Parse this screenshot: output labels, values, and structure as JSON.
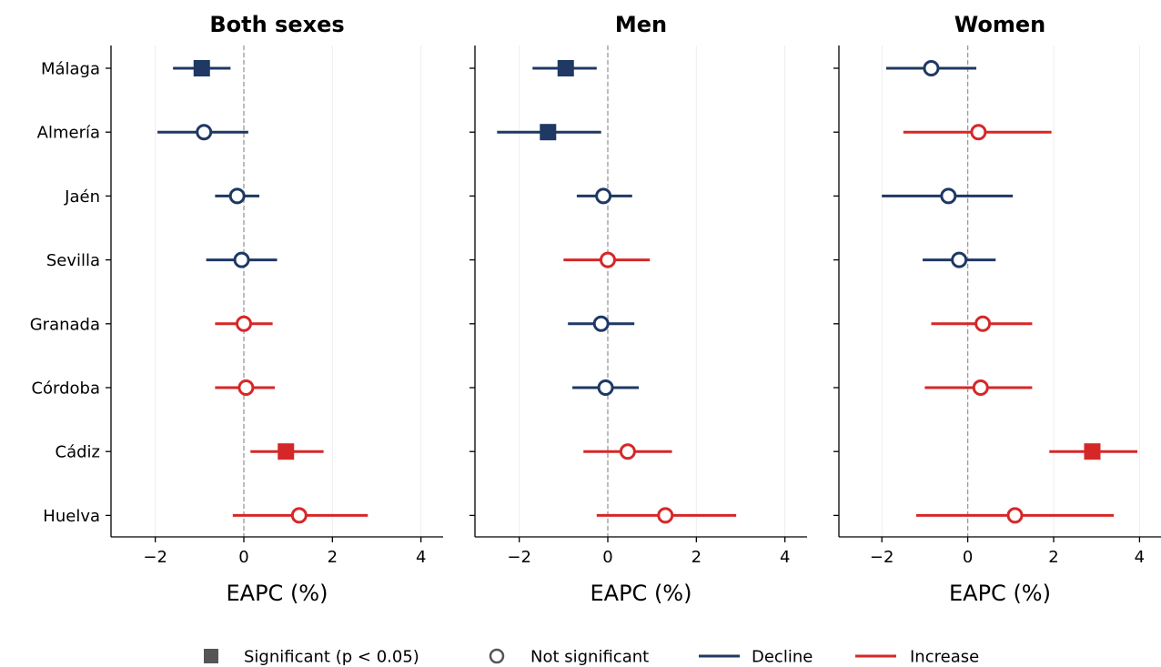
{
  "chart_data": {
    "type": "forest",
    "categories": [
      "Málaga",
      "Almería",
      "Jaén",
      "Sevilla",
      "Granada",
      "Córdoba",
      "Cádiz",
      "Huelva"
    ],
    "xlim": [
      -3,
      4.5
    ],
    "xticks": [
      -2,
      0,
      2,
      4
    ],
    "xtick_labels": [
      "−2",
      "0",
      "2",
      "4"
    ],
    "reference_line": 0,
    "colors": {
      "decline": "#1f3864",
      "increase": "#d62728",
      "significant_marker": "#555555",
      "reference": "#999999"
    },
    "panels": [
      {
        "title": "Both sexes",
        "xlabel": "EAPC (%)",
        "points": [
          {
            "category": "Málaga",
            "eapc": -0.95,
            "ci_low": -1.6,
            "ci_high": -0.3,
            "significant": true,
            "direction": "decline"
          },
          {
            "category": "Almería",
            "eapc": -0.9,
            "ci_low": -1.95,
            "ci_high": 0.1,
            "significant": false,
            "direction": "decline"
          },
          {
            "category": "Jaén",
            "eapc": -0.15,
            "ci_low": -0.65,
            "ci_high": 0.35,
            "significant": false,
            "direction": "decline"
          },
          {
            "category": "Sevilla",
            "eapc": -0.05,
            "ci_low": -0.85,
            "ci_high": 0.75,
            "significant": false,
            "direction": "decline"
          },
          {
            "category": "Granada",
            "eapc": 0.0,
            "ci_low": -0.65,
            "ci_high": 0.65,
            "significant": false,
            "direction": "increase"
          },
          {
            "category": "Córdoba",
            "eapc": 0.05,
            "ci_low": -0.65,
            "ci_high": 0.7,
            "significant": false,
            "direction": "increase"
          },
          {
            "category": "Cádiz",
            "eapc": 0.95,
            "ci_low": 0.15,
            "ci_high": 1.8,
            "significant": true,
            "direction": "increase"
          },
          {
            "category": "Huelva",
            "eapc": 1.25,
            "ci_low": -0.25,
            "ci_high": 2.8,
            "significant": false,
            "direction": "increase"
          }
        ]
      },
      {
        "title": "Men",
        "xlabel": "EAPC (%)",
        "points": [
          {
            "category": "Málaga",
            "eapc": -0.95,
            "ci_low": -1.7,
            "ci_high": -0.25,
            "significant": true,
            "direction": "decline"
          },
          {
            "category": "Almería",
            "eapc": -1.35,
            "ci_low": -2.5,
            "ci_high": -0.15,
            "significant": true,
            "direction": "decline"
          },
          {
            "category": "Jaén",
            "eapc": -0.1,
            "ci_low": -0.7,
            "ci_high": 0.55,
            "significant": false,
            "direction": "decline"
          },
          {
            "category": "Sevilla",
            "eapc": 0.0,
            "ci_low": -1.0,
            "ci_high": 0.95,
            "significant": false,
            "direction": "increase"
          },
          {
            "category": "Granada",
            "eapc": -0.15,
            "ci_low": -0.9,
            "ci_high": 0.6,
            "significant": false,
            "direction": "decline"
          },
          {
            "category": "Córdoba",
            "eapc": -0.05,
            "ci_low": -0.8,
            "ci_high": 0.7,
            "significant": false,
            "direction": "decline"
          },
          {
            "category": "Cádiz",
            "eapc": 0.45,
            "ci_low": -0.55,
            "ci_high": 1.45,
            "significant": false,
            "direction": "increase"
          },
          {
            "category": "Huelva",
            "eapc": 1.3,
            "ci_low": -0.25,
            "ci_high": 2.9,
            "significant": false,
            "direction": "increase"
          }
        ]
      },
      {
        "title": "Women",
        "xlabel": "EAPC (%)",
        "points": [
          {
            "category": "Málaga",
            "eapc": -0.85,
            "ci_low": -1.9,
            "ci_high": 0.2,
            "significant": false,
            "direction": "decline"
          },
          {
            "category": "Almería",
            "eapc": 0.25,
            "ci_low": -1.5,
            "ci_high": 1.95,
            "significant": false,
            "direction": "increase"
          },
          {
            "category": "Jaén",
            "eapc": -0.45,
            "ci_low": -2.0,
            "ci_high": 1.05,
            "significant": false,
            "direction": "decline"
          },
          {
            "category": "Sevilla",
            "eapc": -0.2,
            "ci_low": -1.05,
            "ci_high": 0.65,
            "significant": false,
            "direction": "decline"
          },
          {
            "category": "Granada",
            "eapc": 0.35,
            "ci_low": -0.85,
            "ci_high": 1.5,
            "significant": false,
            "direction": "increase"
          },
          {
            "category": "Córdoba",
            "eapc": 0.3,
            "ci_low": -1.0,
            "ci_high": 1.5,
            "significant": false,
            "direction": "increase"
          },
          {
            "category": "Cádiz",
            "eapc": 2.9,
            "ci_low": 1.9,
            "ci_high": 3.95,
            "significant": true,
            "direction": "increase"
          },
          {
            "category": "Huelva",
            "eapc": 1.1,
            "ci_low": -1.2,
            "ci_high": 3.4,
            "significant": false,
            "direction": "increase"
          }
        ]
      }
    ],
    "legend": {
      "placement": "bottom-center",
      "items": [
        {
          "label": "Significant (p < 0.05)",
          "symbol": "filled-square"
        },
        {
          "label": "Not significant",
          "symbol": "open-circle"
        },
        {
          "label": "Decline",
          "symbol": "line-decline"
        },
        {
          "label": "Increase",
          "symbol": "line-increase"
        }
      ]
    },
    "grid": "vertical-light"
  }
}
